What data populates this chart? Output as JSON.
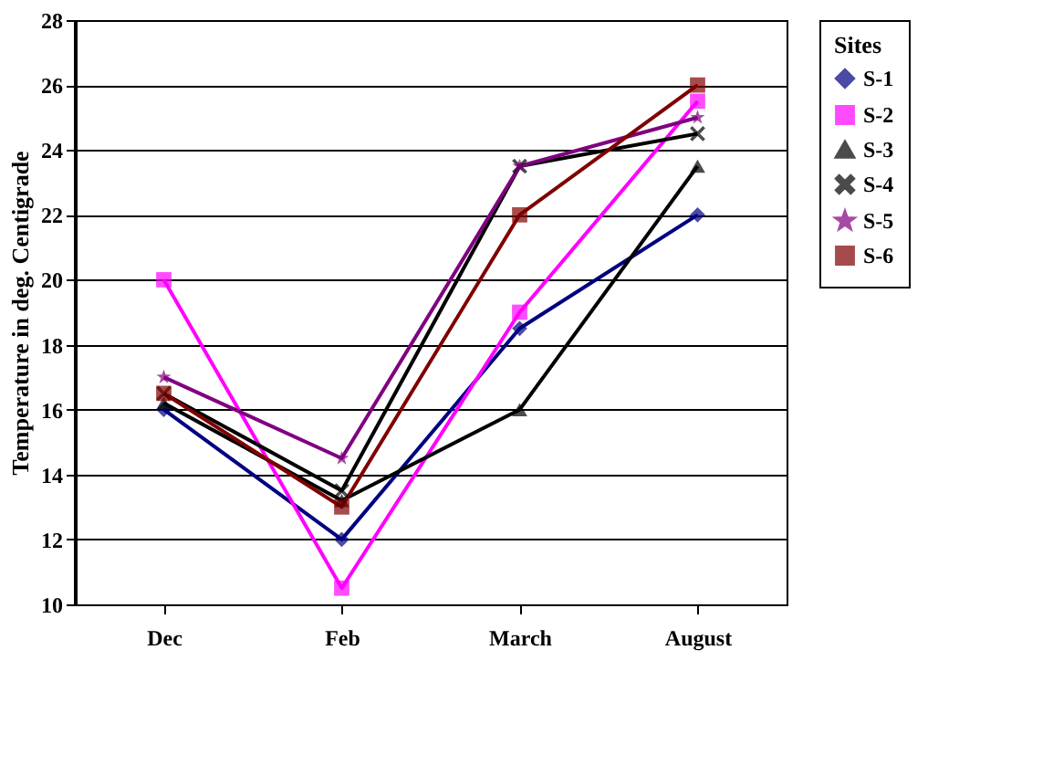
{
  "chart_data": {
    "type": "line",
    "ylabel": "Temperature in deg. Centigrade",
    "legend_title": "Sites",
    "categories": [
      "Dec",
      "Feb",
      "March",
      "August"
    ],
    "series": [
      {
        "name": "S-1",
        "color": "#000080",
        "marker": "diamond",
        "values": [
          16,
          12,
          18.5,
          22
        ]
      },
      {
        "name": "S-2",
        "color": "#ff00ff",
        "marker": "square",
        "values": [
          20,
          10.5,
          19,
          25.5
        ]
      },
      {
        "name": "S-3",
        "color": "#000000",
        "marker": "triangle",
        "values": [
          16.2,
          13.2,
          16,
          23.5
        ]
      },
      {
        "name": "S-4",
        "color": "#000000",
        "marker": "cross",
        "values": [
          16.5,
          13.5,
          23.5,
          24.5
        ]
      },
      {
        "name": "S-5",
        "color": "#800080",
        "marker": "star",
        "values": [
          17,
          14.5,
          23.5,
          25
        ]
      },
      {
        "name": "S-6",
        "color": "#800000",
        "marker": "square",
        "values": [
          16.5,
          13,
          22,
          26
        ]
      }
    ],
    "ylim": [
      10,
      28
    ],
    "yticks": [
      10,
      12,
      14,
      16,
      18,
      20,
      22,
      24,
      26,
      28
    ],
    "grid": "y",
    "legend": "right",
    "line_style": "solid"
  }
}
